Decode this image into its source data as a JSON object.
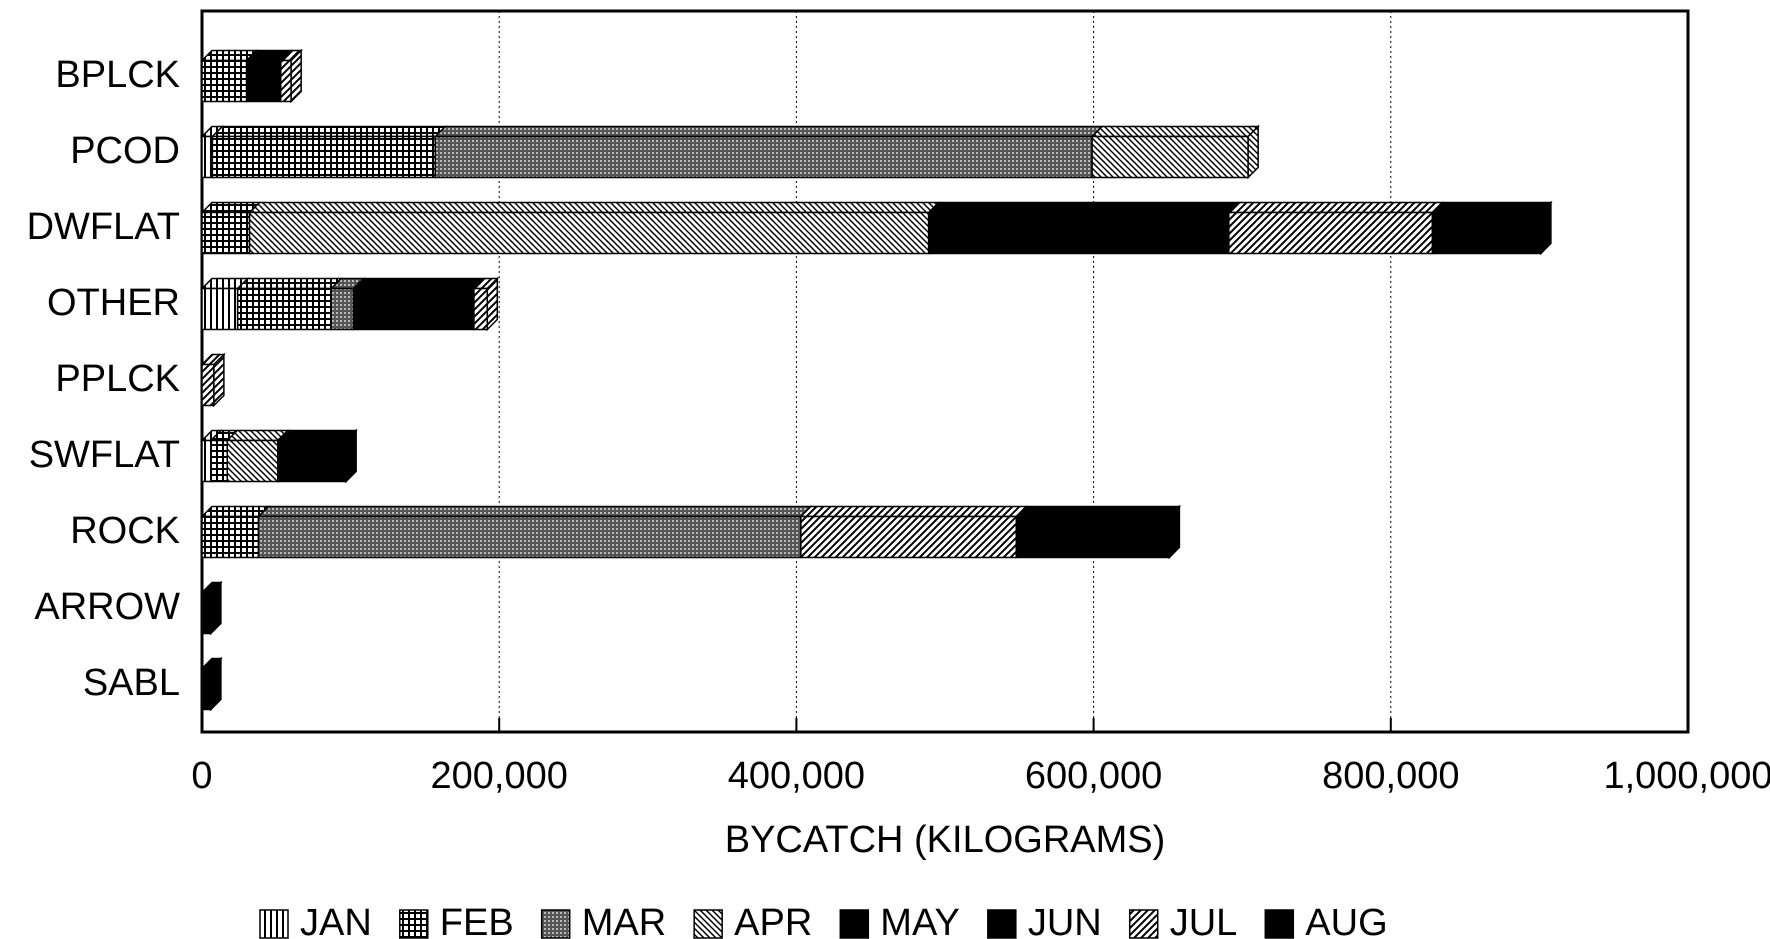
{
  "chart_data": {
    "type": "stacked_bar_horizontal",
    "x_label": "BYCATCH (KILOGRAMS)",
    "categories": [
      "BPLCK",
      "PCOD",
      "DWFLAT",
      "OTHER",
      "PPLCK",
      "SWFLAT",
      "ROCK",
      "ARROW",
      "SABL"
    ],
    "series": [
      {
        "name": "JAN",
        "color": "#000000",
        "pattern": "vertical",
        "values": [
          0,
          7000,
          0,
          24000,
          0,
          6000,
          0,
          0,
          0
        ]
      },
      {
        "name": "FEB",
        "color": "#000000",
        "pattern": "grid",
        "values": [
          30000,
          150000,
          32000,
          63000,
          0,
          11000,
          38000,
          0,
          0
        ]
      },
      {
        "name": "MAR",
        "color": "#000000",
        "pattern": "dense",
        "values": [
          0,
          442000,
          0,
          15000,
          0,
          0,
          365000,
          0,
          0
        ]
      },
      {
        "name": "APR",
        "color": "#000000",
        "pattern": "backslash",
        "values": [
          0,
          105000,
          457000,
          0,
          0,
          34000,
          0,
          0,
          0
        ]
      },
      {
        "name": "MAY",
        "color": "#000000",
        "pattern": "solid",
        "values": [
          0,
          0,
          202000,
          81000,
          0,
          46000,
          0,
          0,
          0
        ]
      },
      {
        "name": "JUN",
        "color": "#000000",
        "pattern": "solid",
        "values": [
          23000,
          0,
          0,
          0,
          0,
          0,
          0,
          0,
          0
        ]
      },
      {
        "name": "JUL",
        "color": "#000000",
        "pattern": "slash",
        "values": [
          7000,
          0,
          137000,
          9000,
          8000,
          0,
          145000,
          0,
          0
        ]
      },
      {
        "name": "AUG",
        "color": "#000000",
        "pattern": "solid",
        "values": [
          0,
          0,
          73000,
          0,
          0,
          0,
          103000,
          6000,
          6000
        ]
      }
    ],
    "xlim": [
      0,
      1000000
    ],
    "xticks": [
      0,
      {
        "value": 200000,
        "label": "200,000"
      },
      {
        "value": 400000,
        "label": "400,000"
      },
      {
        "value": 600000,
        "label": "600,000"
      },
      {
        "value": 800000,
        "label": "800,000"
      },
      {
        "value": 1000000,
        "label": "1,000,000"
      }
    ],
    "grid": true,
    "legend": "bottom"
  }
}
